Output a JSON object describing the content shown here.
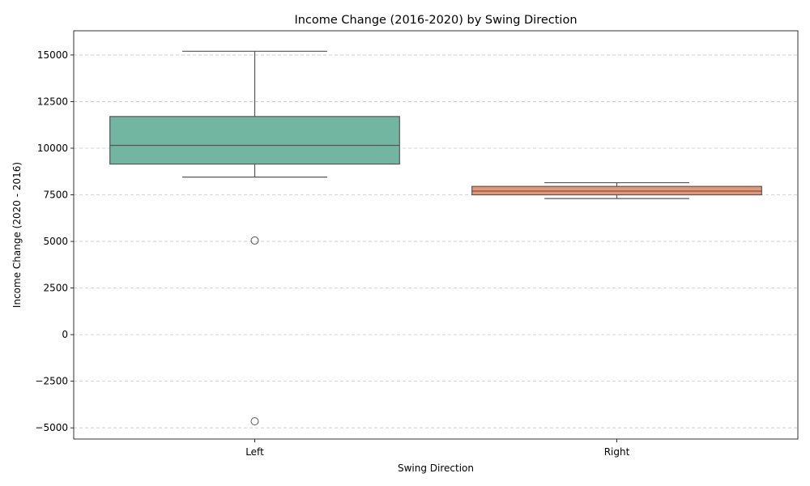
{
  "chart_data": {
    "type": "box",
    "title": "Income Change (2016-2020) by Swing Direction",
    "xlabel": "Swing Direction",
    "ylabel": "Income Change (2020 - 2016)",
    "categories": [
      "Left",
      "Right"
    ],
    "ylim": [
      -5600,
      16300
    ],
    "yticks": [
      -5000,
      -2500,
      0,
      2500,
      5000,
      7500,
      10000,
      12500,
      15000
    ],
    "grid": "y-dashed",
    "series": [
      {
        "category": "Left",
        "whisker_low": 8450,
        "q1": 9150,
        "median": 10150,
        "q3": 11700,
        "whisker_high": 15200,
        "outliers": [
          5050,
          -4650
        ],
        "color": "#72b6a1"
      },
      {
        "category": "Right",
        "whisker_low": 7300,
        "q1": 7500,
        "median": 7700,
        "q3": 7950,
        "whisker_high": 8150,
        "outliers": [],
        "color": "#e99675"
      }
    ]
  }
}
